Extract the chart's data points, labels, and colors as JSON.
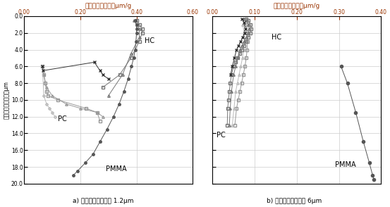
{
  "title": "エロージョン率，μm/g",
  "ylabel": "エロージョン深さ，μm",
  "subplot_a_title": "a) 多角アルミナ粒子 1.2μm",
  "subplot_b_title": "b) 球形ウレタン粒子 6μm",
  "xlim_a": [
    0.0,
    0.6
  ],
  "xticks_a": [
    0.0,
    0.2,
    0.4,
    0.6
  ],
  "xlim_b": [
    0.0,
    0.4
  ],
  "xticks_b": [
    0.0,
    0.1,
    0.2,
    0.3,
    0.4
  ],
  "ylim": [
    0.0,
    20.0
  ],
  "yticks": [
    0.0,
    2.0,
    4.0,
    6.0,
    8.0,
    10.0,
    12.0,
    14.0,
    16.0,
    18.0,
    20.0
  ],
  "a_PMMA_x": [
    0.395,
    0.4,
    0.4,
    0.4,
    0.398,
    0.395,
    0.39,
    0.382,
    0.37,
    0.355,
    0.338,
    0.318,
    0.295,
    0.27,
    0.245,
    0.218,
    0.19,
    0.175
  ],
  "a_PMMA_y": [
    0.5,
    1.0,
    1.5,
    2.0,
    3.0,
    4.0,
    5.0,
    6.0,
    7.5,
    9.0,
    10.5,
    12.0,
    13.5,
    15.0,
    16.5,
    17.5,
    18.5,
    19.0
  ],
  "a_HC_sq_x": [
    0.4,
    0.41,
    0.42,
    0.42,
    0.41,
    0.38,
    0.34,
    0.28
  ],
  "a_HC_sq_y": [
    0.5,
    1.0,
    1.5,
    2.0,
    3.0,
    5.0,
    7.0,
    8.5
  ],
  "a_HC_tri_x": [
    0.39,
    0.4,
    0.41,
    0.41,
    0.38,
    0.35,
    0.3
  ],
  "a_HC_tri_y": [
    0.5,
    1.0,
    1.5,
    2.5,
    4.5,
    7.0,
    9.5
  ],
  "a_HC_x_x": [
    0.065,
    0.068,
    0.25,
    0.27,
    0.28,
    0.3
  ],
  "a_HC_x_y": [
    6.0,
    6.5,
    5.5,
    6.5,
    7.0,
    7.5
  ],
  "a_PC_sq_x": [
    0.065,
    0.07,
    0.075,
    0.08,
    0.085,
    0.12,
    0.22,
    0.26,
    0.27
  ],
  "a_PC_sq_y": [
    6.0,
    7.0,
    8.0,
    9.0,
    9.5,
    10.0,
    11.0,
    11.5,
    12.5
  ],
  "a_PC_tri_x": [
    0.065,
    0.07,
    0.08,
    0.1,
    0.15,
    0.2,
    0.26,
    0.28
  ],
  "a_PC_tri_y": [
    6.0,
    7.0,
    8.5,
    9.5,
    10.5,
    11.0,
    11.5,
    12.0
  ],
  "a_PC_dia_x": [
    0.065,
    0.07,
    0.08,
    0.09,
    0.1,
    0.11
  ],
  "a_PC_dia_y": [
    6.0,
    9.5,
    10.5,
    11.0,
    11.5,
    12.0
  ],
  "b_PMMA_x": [
    0.305,
    0.32,
    0.34,
    0.358,
    0.372,
    0.38,
    0.383
  ],
  "b_PMMA_y": [
    6.0,
    8.0,
    11.5,
    15.0,
    17.5,
    19.0,
    19.5
  ],
  "b_HC_sq_x": [
    0.08,
    0.085,
    0.09,
    0.092,
    0.09,
    0.085,
    0.08,
    0.075,
    0.07,
    0.065,
    0.06,
    0.055,
    0.05,
    0.045,
    0.042,
    0.04,
    0.038,
    0.036,
    0.035
  ],
  "b_HC_sq_y": [
    0.3,
    0.5,
    1.0,
    1.5,
    2.0,
    2.5,
    3.0,
    3.5,
    4.0,
    4.5,
    5.0,
    5.5,
    6.0,
    7.0,
    8.0,
    9.0,
    10.0,
    11.0,
    13.0
  ],
  "b_HC_tri_x": [
    0.075,
    0.08,
    0.085,
    0.087,
    0.085,
    0.08,
    0.075,
    0.07,
    0.065,
    0.06,
    0.055,
    0.05,
    0.045,
    0.042,
    0.04
  ],
  "b_HC_tri_y": [
    0.3,
    0.5,
    1.0,
    1.5,
    2.0,
    2.5,
    3.0,
    3.5,
    4.0,
    5.0,
    6.0,
    7.0,
    9.0,
    11.0,
    13.0
  ],
  "b_HC_x_x": [
    0.07,
    0.075,
    0.078,
    0.076,
    0.072,
    0.067,
    0.062,
    0.057,
    0.052,
    0.047,
    0.043
  ],
  "b_HC_x_y": [
    0.3,
    0.8,
    1.5,
    2.0,
    2.5,
    3.0,
    3.5,
    4.0,
    5.0,
    6.0,
    7.0
  ],
  "b_PC_sq_x": [
    0.08,
    0.082,
    0.083,
    0.082,
    0.08,
    0.077,
    0.073,
    0.069,
    0.065,
    0.061,
    0.057,
    0.053
  ],
  "b_PC_sq_y": [
    1.0,
    2.0,
    3.0,
    4.0,
    5.0,
    6.0,
    7.0,
    8.0,
    9.0,
    10.0,
    11.0,
    13.0
  ],
  "b_PC_tri_x": [
    0.072,
    0.075,
    0.076,
    0.074,
    0.071,
    0.067,
    0.063,
    0.059,
    0.055,
    0.051,
    0.047
  ],
  "b_PC_tri_y": [
    1.0,
    2.0,
    3.0,
    4.0,
    5.0,
    6.0,
    7.0,
    8.0,
    9.0,
    11.0,
    13.0
  ],
  "color_PMMA": "#555555",
  "color_HC_dark": "#555555",
  "color_HC_light": "#888888",
  "color_PC": "#aaaaaa",
  "color_axis_x": "#993300",
  "background": "#ffffff",
  "grid_color": "#cccccc"
}
